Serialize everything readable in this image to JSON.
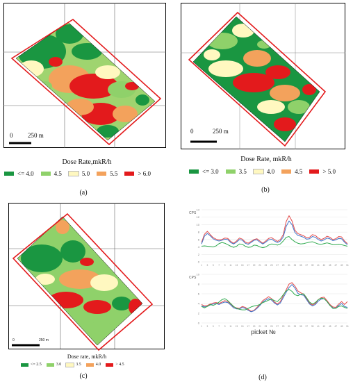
{
  "panels": {
    "a": {
      "label": "(a)",
      "scale_zero": "0",
      "scale_text": "250 m",
      "legend_title": "Dose Rate,mkR/h",
      "legend": [
        {
          "label": "<= 4.0",
          "color": "#1a9641"
        },
        {
          "label": "4.5",
          "color": "#8fd16a"
        },
        {
          "label": "5.0",
          "color": "#fff8c0"
        },
        {
          "label": "5.5",
          "color": "#f3a25c"
        },
        {
          "label": "> 6.0",
          "color": "#e31a1c"
        }
      ]
    },
    "b": {
      "label": "(b)",
      "scale_zero": "0",
      "scale_text": "250 m",
      "legend_title": "Dose Rate, mkR/h",
      "legend": [
        {
          "label": "<= 3.0",
          "color": "#1a9641"
        },
        {
          "label": "3.5",
          "color": "#8fd16a"
        },
        {
          "label": "4.0",
          "color": "#fff8c0"
        },
        {
          "label": "4.5",
          "color": "#f3a25c"
        },
        {
          "label": "> 5.0",
          "color": "#e31a1c"
        }
      ]
    },
    "c": {
      "label": "(c)",
      "scale_zero": "0",
      "scale_text": "250 m",
      "legend_title": "Dose rate, mkR/h",
      "legend": [
        {
          "label": "<= 2.5",
          "color": "#1a9641"
        },
        {
          "label": "3.0",
          "color": "#8fd16a"
        },
        {
          "label": "3.5",
          "color": "#fff8c0"
        },
        {
          "label": "4.0",
          "color": "#f3a25c"
        },
        {
          "label": "> 4.5",
          "color": "#e31a1c"
        }
      ]
    },
    "d": {
      "label": "(d)",
      "xlabel": "picket №"
    }
  },
  "chart_data": [
    {
      "type": "line",
      "ylabel": "CPS",
      "x": [
        1,
        2,
        3,
        4,
        5,
        6,
        7,
        8,
        9,
        10,
        11,
        12,
        13,
        14,
        15,
        16,
        17,
        18,
        19,
        20,
        21,
        22,
        23,
        24,
        25,
        26,
        27,
        28,
        29,
        30,
        31,
        32,
        33,
        34,
        35,
        36,
        37,
        38,
        39,
        40,
        41,
        42,
        43,
        44,
        45,
        46,
        47,
        48,
        49,
        50,
        51
      ],
      "ylim": [
        0,
        14
      ],
      "yticks": [
        0,
        2,
        4,
        6,
        8,
        10,
        12,
        14
      ],
      "series": [
        {
          "color": "#e34a4a",
          "values": [
            5.2,
            7.4,
            8.2,
            7.3,
            6.5,
            6.1,
            5.9,
            6.0,
            6.4,
            6.3,
            5.5,
            5.0,
            5.6,
            6.4,
            6.1,
            5.3,
            5.0,
            5.5,
            6.0,
            6.2,
            5.6,
            5.0,
            5.6,
            6.3,
            6.5,
            6.0,
            5.5,
            6.0,
            7.3,
            10.8,
            12.4,
            11.0,
            8.5,
            7.6,
            7.3,
            7.0,
            6.5,
            6.6,
            7.3,
            7.1,
            6.4,
            6.0,
            6.3,
            6.9,
            6.6,
            6.0,
            6.2,
            6.8,
            6.7,
            5.6,
            4.9
          ]
        },
        {
          "color": "#3d72c9",
          "values": [
            4.8,
            6.9,
            7.6,
            7.0,
            6.2,
            5.8,
            5.6,
            5.8,
            6.1,
            6.0,
            5.2,
            4.8,
            5.3,
            6.0,
            5.8,
            5.0,
            4.7,
            5.2,
            5.8,
            5.9,
            5.3,
            4.8,
            5.3,
            5.9,
            6.1,
            5.6,
            5.2,
            5.6,
            6.7,
            9.5,
            11.0,
            10.0,
            7.9,
            7.1,
            6.9,
            6.6,
            6.1,
            6.2,
            6.8,
            6.6,
            6.0,
            5.6,
            5.9,
            6.4,
            6.2,
            5.7,
            5.9,
            6.3,
            6.2,
            5.3,
            4.6
          ]
        },
        {
          "color": "#2eaa4e",
          "values": [
            4.2,
            4.3,
            4.2,
            4.1,
            4.0,
            4.3,
            4.9,
            5.2,
            5.0,
            4.6,
            4.2,
            3.9,
            4.2,
            4.8,
            4.7,
            4.2,
            3.9,
            4.0,
            4.5,
            4.4,
            4.0,
            3.8,
            4.0,
            4.5,
            4.8,
            4.7,
            4.5,
            4.8,
            5.6,
            6.6,
            6.8,
            6.0,
            5.4,
            5.0,
            4.8,
            4.9,
            5.1,
            5.3,
            5.4,
            5.1,
            4.8,
            4.7,
            4.9,
            5.1,
            4.9,
            4.6,
            4.6,
            4.7,
            4.6,
            4.4,
            4.2
          ]
        }
      ]
    },
    {
      "type": "line",
      "ylabel": "CPS",
      "x": [
        1,
        2,
        3,
        4,
        5,
        6,
        7,
        8,
        9,
        10,
        11,
        12,
        13,
        14,
        15,
        16,
        17,
        18,
        19,
        20,
        21,
        22,
        23,
        24,
        25,
        26,
        27,
        28,
        29,
        30,
        31,
        32,
        33,
        34,
        35,
        36,
        37,
        38,
        39,
        40,
        41,
        42,
        43,
        44,
        45,
        46,
        47,
        48,
        49,
        50,
        51
      ],
      "ylim": [
        0,
        10
      ],
      "yticks": [
        0,
        2,
        4,
        6,
        8,
        10
      ],
      "series": [
        {
          "color": "#e34a4a",
          "values": [
            3.8,
            3.5,
            3.6,
            3.9,
            4.1,
            4.2,
            4.0,
            4.3,
            4.6,
            4.4,
            3.9,
            3.3,
            3.1,
            3.0,
            3.4,
            3.2,
            2.8,
            2.4,
            2.6,
            3.2,
            3.8,
            4.6,
            5.0,
            5.4,
            5.0,
            4.3,
            3.9,
            4.4,
            5.6,
            6.8,
            8.0,
            8.3,
            7.6,
            6.6,
            6.2,
            5.9,
            5.0,
            4.1,
            3.7,
            4.0,
            4.8,
            5.2,
            5.3,
            4.6,
            3.8,
            3.3,
            3.2,
            3.9,
            4.4,
            3.8,
            4.4
          ]
        },
        {
          "color": "#3d72c9",
          "values": [
            3.5,
            3.3,
            3.4,
            3.7,
            3.9,
            4.0,
            3.8,
            4.1,
            4.3,
            4.2,
            3.7,
            3.1,
            2.9,
            2.9,
            3.2,
            3.0,
            2.6,
            2.3,
            2.5,
            3.0,
            3.6,
            4.3,
            4.7,
            5.0,
            4.7,
            4.1,
            3.7,
            4.1,
            5.2,
            6.3,
            7.3,
            7.9,
            7.2,
            6.1,
            5.8,
            5.7,
            4.8,
            3.9,
            3.5,
            3.8,
            4.5,
            4.9,
            5.0,
            4.4,
            3.6,
            3.1,
            3.0,
            3.6,
            4.0,
            3.4,
            3.2
          ]
        },
        {
          "color": "#2eaa4e",
          "values": [
            3.4,
            3.1,
            3.4,
            3.8,
            3.6,
            3.9,
            4.3,
            4.8,
            5.0,
            4.6,
            4.0,
            3.4,
            3.0,
            2.8,
            2.7,
            2.7,
            3.0,
            3.3,
            3.5,
            3.6,
            3.8,
            4.2,
            4.4,
            4.7,
            4.9,
            4.6,
            4.4,
            5.0,
            5.8,
            6.6,
            6.9,
            6.5,
            5.8,
            5.6,
            5.9,
            6.0,
            5.2,
            4.3,
            3.9,
            4.2,
            4.8,
            5.1,
            5.0,
            4.4,
            3.6,
            3.0,
            3.0,
            3.4,
            3.5,
            3.2,
            3.0
          ]
        }
      ]
    }
  ]
}
